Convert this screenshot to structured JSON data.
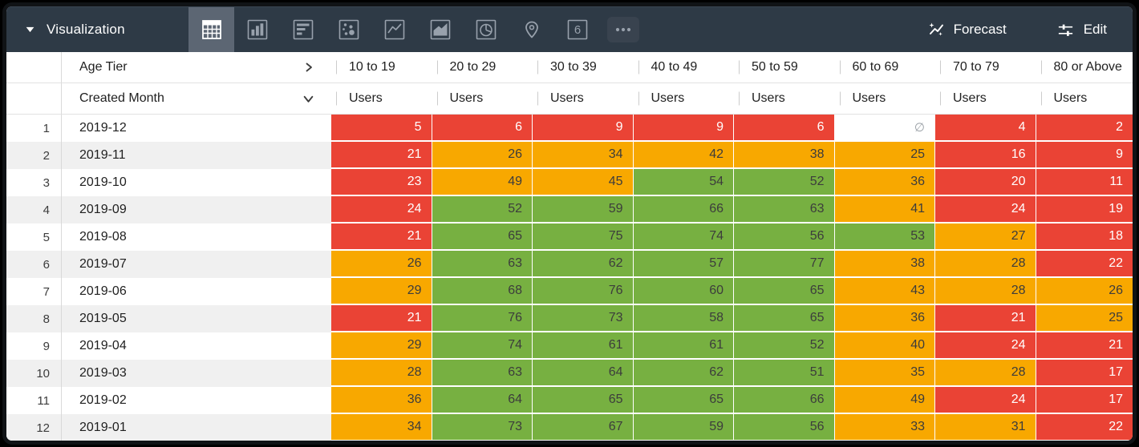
{
  "titlebar": {
    "title": "Visualization",
    "forecast_label": "Forecast",
    "edit_label": "Edit",
    "selected_viz": "table",
    "viz_types": [
      {
        "name": "table"
      },
      {
        "name": "column-chart"
      },
      {
        "name": "bar-chart"
      },
      {
        "name": "scatter"
      },
      {
        "name": "line-chart"
      },
      {
        "name": "area-chart"
      },
      {
        "name": "pie-chart"
      },
      {
        "name": "map"
      },
      {
        "name": "single-value",
        "label": "6"
      },
      {
        "name": "more"
      }
    ]
  },
  "colors": {
    "r": "#EA4335",
    "o": "#F8A800",
    "g": "#77B041",
    "n": "#FFFFFF",
    "text_on_red": "#FFFFFF",
    "text_on_warm": "#3C3C3C",
    "null_text": "#9AA0A6",
    "topbar": "#2E3A46"
  },
  "table": {
    "pivot_field": "Age Tier",
    "row_field": "Created Month",
    "measure": "Users",
    "null_symbol": "∅",
    "columns": [
      "10 to 19",
      "20 to 29",
      "30 to 39",
      "40 to 49",
      "50 to 59",
      "60 to 69",
      "70 to 79",
      "80 or Above"
    ],
    "rows": [
      {
        "n": "1",
        "month": "2019-12",
        "cells": [
          {
            "v": "5",
            "c": "r"
          },
          {
            "v": "6",
            "c": "r"
          },
          {
            "v": "9",
            "c": "r"
          },
          {
            "v": "9",
            "c": "r"
          },
          {
            "v": "6",
            "c": "r"
          },
          {
            "v": null,
            "c": "n"
          },
          {
            "v": "4",
            "c": "r"
          },
          {
            "v": "2",
            "c": "r"
          }
        ]
      },
      {
        "n": "2",
        "month": "2019-11",
        "cells": [
          {
            "v": "21",
            "c": "r"
          },
          {
            "v": "26",
            "c": "o"
          },
          {
            "v": "34",
            "c": "o"
          },
          {
            "v": "42",
            "c": "o"
          },
          {
            "v": "38",
            "c": "o"
          },
          {
            "v": "25",
            "c": "o"
          },
          {
            "v": "16",
            "c": "r"
          },
          {
            "v": "9",
            "c": "r"
          }
        ]
      },
      {
        "n": "3",
        "month": "2019-10",
        "cells": [
          {
            "v": "23",
            "c": "r"
          },
          {
            "v": "49",
            "c": "o"
          },
          {
            "v": "45",
            "c": "o"
          },
          {
            "v": "54",
            "c": "g"
          },
          {
            "v": "52",
            "c": "g"
          },
          {
            "v": "36",
            "c": "o"
          },
          {
            "v": "20",
            "c": "r"
          },
          {
            "v": "11",
            "c": "r"
          }
        ]
      },
      {
        "n": "4",
        "month": "2019-09",
        "cells": [
          {
            "v": "24",
            "c": "r"
          },
          {
            "v": "52",
            "c": "g"
          },
          {
            "v": "59",
            "c": "g"
          },
          {
            "v": "66",
            "c": "g"
          },
          {
            "v": "63",
            "c": "g"
          },
          {
            "v": "41",
            "c": "o"
          },
          {
            "v": "24",
            "c": "r"
          },
          {
            "v": "19",
            "c": "r"
          }
        ]
      },
      {
        "n": "5",
        "month": "2019-08",
        "cells": [
          {
            "v": "21",
            "c": "r"
          },
          {
            "v": "65",
            "c": "g"
          },
          {
            "v": "75",
            "c": "g"
          },
          {
            "v": "74",
            "c": "g"
          },
          {
            "v": "56",
            "c": "g"
          },
          {
            "v": "53",
            "c": "g"
          },
          {
            "v": "27",
            "c": "o"
          },
          {
            "v": "18",
            "c": "r"
          }
        ]
      },
      {
        "n": "6",
        "month": "2019-07",
        "cells": [
          {
            "v": "26",
            "c": "o"
          },
          {
            "v": "63",
            "c": "g"
          },
          {
            "v": "62",
            "c": "g"
          },
          {
            "v": "57",
            "c": "g"
          },
          {
            "v": "77",
            "c": "g"
          },
          {
            "v": "38",
            "c": "o"
          },
          {
            "v": "28",
            "c": "o"
          },
          {
            "v": "22",
            "c": "r"
          }
        ]
      },
      {
        "n": "7",
        "month": "2019-06",
        "cells": [
          {
            "v": "29",
            "c": "o"
          },
          {
            "v": "68",
            "c": "g"
          },
          {
            "v": "76",
            "c": "g"
          },
          {
            "v": "60",
            "c": "g"
          },
          {
            "v": "65",
            "c": "g"
          },
          {
            "v": "43",
            "c": "o"
          },
          {
            "v": "28",
            "c": "o"
          },
          {
            "v": "26",
            "c": "o"
          }
        ]
      },
      {
        "n": "8",
        "month": "2019-05",
        "cells": [
          {
            "v": "21",
            "c": "r"
          },
          {
            "v": "76",
            "c": "g"
          },
          {
            "v": "73",
            "c": "g"
          },
          {
            "v": "58",
            "c": "g"
          },
          {
            "v": "65",
            "c": "g"
          },
          {
            "v": "36",
            "c": "o"
          },
          {
            "v": "21",
            "c": "r"
          },
          {
            "v": "25",
            "c": "o"
          }
        ]
      },
      {
        "n": "9",
        "month": "2019-04",
        "cells": [
          {
            "v": "29",
            "c": "o"
          },
          {
            "v": "74",
            "c": "g"
          },
          {
            "v": "61",
            "c": "g"
          },
          {
            "v": "61",
            "c": "g"
          },
          {
            "v": "52",
            "c": "g"
          },
          {
            "v": "40",
            "c": "o"
          },
          {
            "v": "24",
            "c": "r"
          },
          {
            "v": "21",
            "c": "r"
          }
        ]
      },
      {
        "n": "10",
        "month": "2019-03",
        "cells": [
          {
            "v": "28",
            "c": "o"
          },
          {
            "v": "63",
            "c": "g"
          },
          {
            "v": "64",
            "c": "g"
          },
          {
            "v": "62",
            "c": "g"
          },
          {
            "v": "51",
            "c": "g"
          },
          {
            "v": "35",
            "c": "o"
          },
          {
            "v": "28",
            "c": "o"
          },
          {
            "v": "17",
            "c": "r"
          }
        ]
      },
      {
        "n": "11",
        "month": "2019-02",
        "cells": [
          {
            "v": "36",
            "c": "o"
          },
          {
            "v": "64",
            "c": "g"
          },
          {
            "v": "65",
            "c": "g"
          },
          {
            "v": "65",
            "c": "g"
          },
          {
            "v": "66",
            "c": "g"
          },
          {
            "v": "49",
            "c": "o"
          },
          {
            "v": "24",
            "c": "r"
          },
          {
            "v": "17",
            "c": "r"
          }
        ]
      },
      {
        "n": "12",
        "month": "2019-01",
        "cells": [
          {
            "v": "34",
            "c": "o"
          },
          {
            "v": "73",
            "c": "g"
          },
          {
            "v": "67",
            "c": "g"
          },
          {
            "v": "59",
            "c": "g"
          },
          {
            "v": "56",
            "c": "g"
          },
          {
            "v": "33",
            "c": "o"
          },
          {
            "v": "31",
            "c": "o"
          },
          {
            "v": "22",
            "c": "r"
          }
        ]
      }
    ]
  }
}
